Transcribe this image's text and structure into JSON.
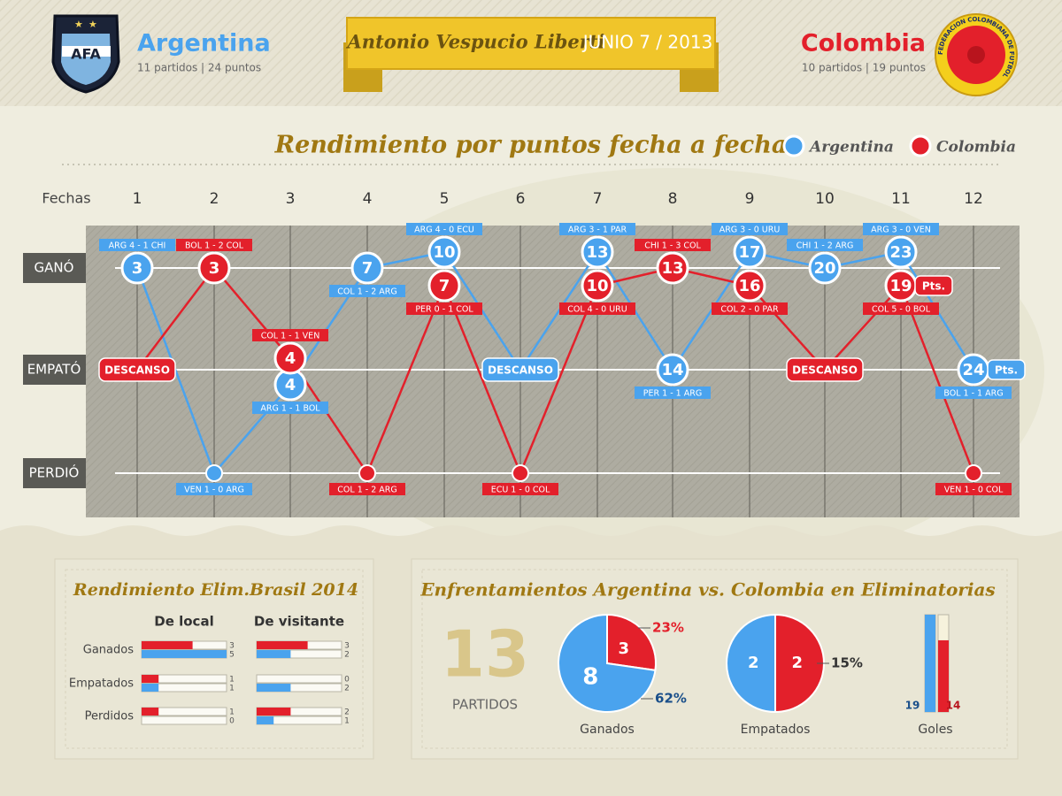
{
  "header": {
    "home": {
      "name": "Argentina",
      "stats": "11 partidos | 24 puntos",
      "logo": "AFA",
      "color": "#4aa3ee"
    },
    "stadium": "Antonio Vespucio Liberti",
    "date": "JUNIO 7 / 2013",
    "away": {
      "name": "Colombia",
      "stats": "10 partidos | 19 puntos",
      "logo": "FEDERACION COLOMBIANA DE FUTBOL",
      "color": "#e3202b"
    }
  },
  "timeline": {
    "title": "Rendimiento por puntos fecha a fecha",
    "fechas_label": "Fechas",
    "fechas": [
      1,
      2,
      3,
      4,
      5,
      6,
      7,
      8,
      9,
      10,
      11,
      12
    ],
    "rows": [
      "GANÓ",
      "EMPATÓ",
      "PERDIÓ"
    ],
    "series": [
      {
        "name": "Argentina",
        "color": "#4aa3ee",
        "points_label": "Pts.",
        "matches": [
          {
            "points": 3,
            "score": "ARG 4 - 1 CHI"
          },
          {
            "points": null,
            "score": "VEN 1 - 0 ARG"
          },
          {
            "points": 4,
            "score": "ARG 1 - 1 BOL"
          },
          {
            "points": 7,
            "score": "COL 1 - 2 ARG"
          },
          {
            "points": 10,
            "score": "ARG 4 - 0 ECU"
          },
          {
            "label": "DESCANSO"
          },
          {
            "points": 13,
            "score": "ARG 3 - 1 PAR"
          },
          {
            "points": 14,
            "score": "PER 1 - 1 ARG"
          },
          {
            "points": 17,
            "score": "ARG 3 - 0 URU"
          },
          {
            "points": 20,
            "score": "CHI 1 - 2 ARG"
          },
          {
            "points": 23,
            "score": "ARG 3 - 0 VEN"
          },
          {
            "points": 24,
            "score": "BOL 1 - 1 ARG"
          }
        ]
      },
      {
        "name": "Colombia",
        "color": "#e3202b",
        "points_label": "Pts.",
        "matches": [
          {
            "label": "DESCANSO"
          },
          {
            "points": 3,
            "score": "BOL 1 - 2 COL"
          },
          {
            "points": 4,
            "score": "COL 1 - 1 VEN"
          },
          {
            "points": null,
            "score": "COL 1 - 2 ARG"
          },
          {
            "points": 7,
            "score": "PER 0 - 1 COL"
          },
          {
            "points": null,
            "score": "ECU 1 - 0 COL"
          },
          {
            "points": 10,
            "score": "COL 4 - 0 URU"
          },
          {
            "points": 13,
            "score": "CHI 1 - 3 COL"
          },
          {
            "points": 16,
            "score": "COL 2 - 0 PAR"
          },
          {
            "label": "DESCANSO"
          },
          {
            "points": 19,
            "score": "COL 5 - 0 BOL"
          },
          {
            "points": null,
            "score": "VEN 1 - 0 COL"
          }
        ]
      }
    ]
  },
  "home_away": {
    "title": "Rendimiento Elim.Brasil 2014",
    "rows": [
      "Ganados",
      "Empatados",
      "Perdidos"
    ],
    "xlim": [
      0,
      5
    ],
    "columns": [
      {
        "label": "De local",
        "colombia": [
          3,
          1,
          1
        ],
        "argentina": [
          5,
          1,
          0
        ]
      },
      {
        "label": "De visitante",
        "colombia": [
          3,
          0,
          2
        ],
        "argentina": [
          2,
          2,
          1
        ]
      }
    ]
  },
  "head_to_head": {
    "title": "Enfrentamientos Argentina vs. Colombia en Eliminatorias",
    "total": 13,
    "total_label": "PARTIDOS",
    "pies": [
      {
        "label": "Ganados",
        "values": [
          8,
          3
        ],
        "percent_labels": [
          "62%",
          "23%"
        ]
      },
      {
        "label": "Empatados",
        "values": [
          2,
          2
        ],
        "percent_labels": [
          "15%"
        ]
      }
    ],
    "goals": {
      "label": "Goles",
      "values": [
        19,
        14
      ],
      "ylim": [
        0,
        19
      ]
    }
  }
}
